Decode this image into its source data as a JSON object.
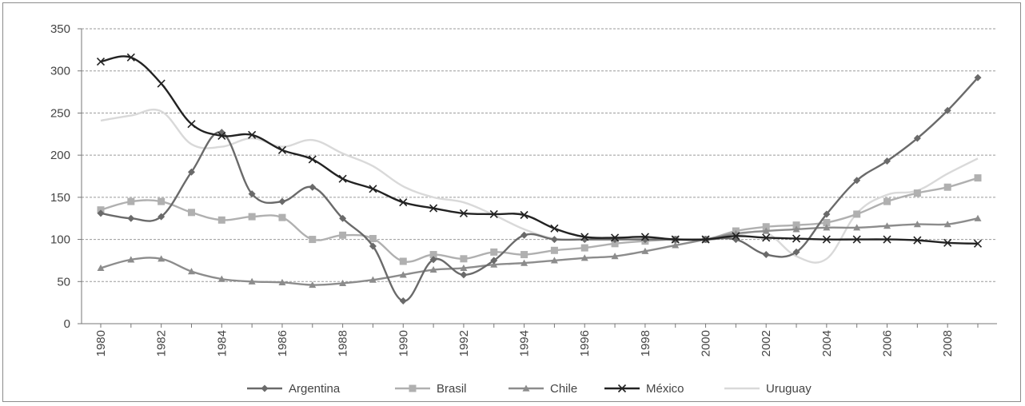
{
  "chart_data": {
    "type": "line",
    "title": "",
    "xlabel": "",
    "ylabel": "",
    "x": [
      1980,
      1981,
      1982,
      1983,
      1984,
      1985,
      1986,
      1987,
      1988,
      1989,
      1990,
      1991,
      1992,
      1993,
      1994,
      1995,
      1996,
      1997,
      1998,
      1999,
      2000,
      2001,
      2002,
      2003,
      2004,
      2005,
      2006,
      2007,
      2008,
      2009
    ],
    "x_tick_labels": [
      "1980",
      "1982",
      "1984",
      "1986",
      "1988",
      "1990",
      "1992",
      "1994",
      "1996",
      "1998",
      "2000",
      "2002",
      "2004",
      "2006",
      "2008"
    ],
    "y_tick_labels": [
      "0",
      "50",
      "100",
      "150",
      "200",
      "250",
      "300",
      "350"
    ],
    "ylim": [
      0,
      350
    ],
    "grid": "horizontal dashed",
    "legend_position": "bottom",
    "series": [
      {
        "name": "Argentina",
        "color": "#6a6a6a",
        "marker": "diamond",
        "values": [
          131,
          125,
          127,
          180,
          227,
          154,
          145,
          162,
          125,
          92,
          27,
          76,
          58,
          75,
          105,
          100,
          100,
          100,
          100,
          100,
          100,
          100,
          82,
          85,
          130,
          170,
          193,
          220,
          253,
          292
        ]
      },
      {
        "name": "Brasil",
        "color": "#b0b0b0",
        "marker": "square",
        "values": [
          135,
          145,
          145,
          132,
          123,
          127,
          126,
          100,
          105,
          101,
          74,
          82,
          77,
          85,
          82,
          87,
          90,
          95,
          98,
          100,
          100,
          110,
          115,
          117,
          120,
          130,
          145,
          155,
          162,
          173
        ]
      },
      {
        "name": "Chile",
        "color": "#8c8c8c",
        "marker": "triangle",
        "values": [
          66,
          76,
          77,
          62,
          53,
          50,
          49,
          46,
          48,
          52,
          58,
          64,
          66,
          70,
          72,
          75,
          78,
          80,
          86,
          93,
          100,
          107,
          110,
          112,
          114,
          114,
          116,
          118,
          118,
          125
        ]
      },
      {
        "name": "México",
        "color": "#222222",
        "marker": "x",
        "values": [
          311,
          316,
          285,
          237,
          223,
          224,
          206,
          195,
          172,
          160,
          144,
          137,
          131,
          130,
          129,
          113,
          103,
          102,
          103,
          100,
          100,
          104,
          102,
          101,
          100,
          100,
          100,
          99,
          96,
          95
        ]
      },
      {
        "name": "Uruguay",
        "color": "#d9d9d9",
        "marker": "none",
        "values": [
          241,
          247,
          252,
          213,
          210,
          220,
          210,
          218,
          202,
          187,
          163,
          150,
          144,
          129,
          112,
          101,
          100,
          100,
          100,
          100,
          100,
          105,
          108,
          80,
          77,
          131,
          153,
          158,
          178,
          196
        ]
      }
    ]
  }
}
